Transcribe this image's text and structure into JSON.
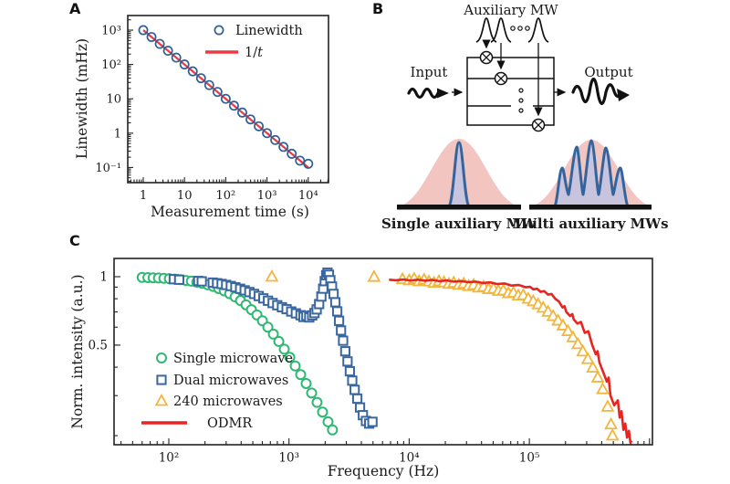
{
  "panels": {
    "a": "A",
    "b": "B",
    "c": "C"
  },
  "diagram": {
    "auxiliary_mw": "Auxiliary MW",
    "input": "Input",
    "output": "Output",
    "single_caption": "Single auxiliary MW",
    "multi_caption": "Multi auxiliary MWs",
    "colors": {
      "envelope": "#f3c5c1",
      "comb_line": "#33659c",
      "comb_fill": "#c9c4de",
      "ink": "#111111"
    }
  },
  "chart_data": [
    {
      "id": "panel_a",
      "type": "scatter",
      "title": "",
      "xlabel": "Measurement time (s)",
      "ylabel": "Linewidth (mHz)",
      "xscale": "log",
      "yscale": "log",
      "xlim": [
        0.42,
        31000
      ],
      "ylim": [
        0.035,
        2600
      ],
      "xticks": [
        {
          "v": 1,
          "label": "1"
        },
        {
          "v": 10,
          "label": "10"
        },
        {
          "v": 100,
          "label": "10²"
        },
        {
          "v": 1000,
          "label": "10³"
        },
        {
          "v": 10000,
          "label": "10⁴"
        }
      ],
      "yticks": [
        {
          "v": 1000,
          "label": "10³"
        },
        {
          "v": 100,
          "label": "10²"
        },
        {
          "v": 10,
          "label": "10"
        },
        {
          "v": 1,
          "label": "1"
        },
        {
          "v": 0.1,
          "label": "10⁻¹"
        }
      ],
      "legend": [
        {
          "marker": "circle",
          "color": "#2d5f96",
          "parts": [
            {
              "text": "Linewidth"
            }
          ]
        },
        {
          "marker": "line",
          "color": "#ed3b43",
          "parts": [
            {
              "text": "1/"
            },
            {
              "text": "t",
              "italic": true
            }
          ]
        }
      ],
      "series": [
        {
          "name": "1/t",
          "type": "line",
          "color": "#ed3b43",
          "points": [
            [
              1,
              1000
            ],
            [
              10000,
              0.1
            ]
          ]
        },
        {
          "name": "Linewidth",
          "type": "scatter",
          "marker": "circle",
          "color": "#2d5f96",
          "points": [
            [
              1,
              1000
            ],
            [
              1.585,
              631
            ],
            [
              2.512,
              398
            ],
            [
              3.981,
              251
            ],
            [
              6.31,
              158.5
            ],
            [
              10,
              100
            ],
            [
              15.85,
              63.1
            ],
            [
              25.12,
              39.8
            ],
            [
              39.81,
              25.1
            ],
            [
              63.1,
              15.85
            ],
            [
              100,
              10
            ],
            [
              158.5,
              6.31
            ],
            [
              251.2,
              3.98
            ],
            [
              398.1,
              2.51
            ],
            [
              631,
              1.585
            ],
            [
              1000,
              1
            ],
            [
              1585,
              0.631
            ],
            [
              2512,
              0.398
            ],
            [
              3981,
              0.251
            ],
            [
              6310,
              0.158
            ],
            [
              10000,
              0.128
            ]
          ]
        }
      ]
    },
    {
      "id": "panel_c",
      "type": "scatter",
      "title": "",
      "xlabel": "Frequency (Hz)",
      "ylabel": "Norm. intensity (a.u.)",
      "xscale": "log",
      "yscale": "log",
      "xlim": [
        35,
        1050000
      ],
      "ylim": [
        0.183,
        1.2
      ],
      "xticks": [
        {
          "v": 100,
          "label": "10²"
        },
        {
          "v": 1000,
          "label": "10³"
        },
        {
          "v": 10000,
          "label": "10⁴"
        },
        {
          "v": 100000,
          "label": "10⁵"
        },
        {
          "v": 1000000,
          "label": ""
        }
      ],
      "yticks": [
        {
          "v": 1,
          "label": "1"
        },
        {
          "v": 0.5,
          "label": "0.5"
        }
      ],
      "legend": [
        {
          "marker": "circle",
          "color": "#2eb873",
          "parts": [
            {
              "text": "Single microwave"
            }
          ]
        },
        {
          "marker": "square",
          "color": "#3a679f",
          "parts": [
            {
              "text": "Dual microwaves"
            }
          ]
        },
        {
          "marker": "triangle",
          "color": "#f2b63c",
          "parts": [
            {
              "text": "240 microwaves"
            }
          ]
        },
        {
          "marker": "line",
          "color": "#e62420",
          "parts": [
            {
              "text": "ODMR"
            }
          ]
        }
      ],
      "series": [
        {
          "name": "Single microwave",
          "type": "scatter",
          "marker": "circle",
          "color": "#2eb873",
          "points": [
            [
              60,
              0.993
            ],
            [
              67,
              0.991
            ],
            [
              74,
              0.989
            ],
            [
              82,
              0.987
            ],
            [
              91,
              0.984
            ],
            [
              101,
              0.98
            ],
            [
              112,
              0.976
            ],
            [
              125,
              0.97
            ],
            [
              139,
              0.963
            ],
            [
              154,
              0.956
            ],
            [
              171,
              0.946
            ],
            [
              190,
              0.935
            ],
            [
              211,
              0.921
            ],
            [
              234,
              0.906
            ],
            [
              260,
              0.887
            ],
            [
              289,
              0.866
            ],
            [
              321,
              0.842
            ],
            [
              356,
              0.815
            ],
            [
              395,
              0.785
            ],
            [
              439,
              0.752
            ],
            [
              487,
              0.716
            ],
            [
              541,
              0.679
            ],
            [
              601,
              0.64
            ],
            [
              667,
              0.6
            ],
            [
              741,
              0.559
            ],
            [
              823,
              0.519
            ],
            [
              914,
              0.48
            ],
            [
              1015,
              0.442
            ],
            [
              1127,
              0.405
            ],
            [
              1251,
              0.371
            ],
            [
              1389,
              0.339
            ],
            [
              1543,
              0.308
            ],
            [
              1713,
              0.28
            ],
            [
              1902,
              0.254
            ],
            [
              2112,
              0.23
            ],
            [
              2300,
              0.212
            ]
          ]
        },
        {
          "name": "Dual microwaves",
          "type": "scatter",
          "marker": "square",
          "color": "#3a679f",
          "points": [
            [
              110,
              0.975
            ],
            [
              122,
              0.97
            ],
            [
              176,
              0.958
            ],
            [
              188,
              0.954
            ],
            [
              232,
              0.942
            ],
            [
              252,
              0.936
            ],
            [
              275,
              0.929
            ],
            [
              300,
              0.92
            ],
            [
              328,
              0.91
            ],
            [
              358,
              0.898
            ],
            [
              392,
              0.885
            ],
            [
              428,
              0.871
            ],
            [
              468,
              0.856
            ],
            [
              512,
              0.84
            ],
            [
              560,
              0.822
            ],
            [
              612,
              0.803
            ],
            [
              669,
              0.784
            ],
            [
              731,
              0.766
            ],
            [
              799,
              0.749
            ],
            [
              874,
              0.734
            ],
            [
              955,
              0.72
            ],
            [
              1044,
              0.703
            ],
            [
              1141,
              0.69
            ],
            [
              1248,
              0.677
            ],
            [
              1320,
              0.665
            ],
            [
              1395,
              0.673
            ],
            [
              1475,
              0.662
            ],
            [
              1560,
              0.676
            ],
            [
              1630,
              0.692
            ],
            [
              1700,
              0.718
            ],
            [
              1782,
              0.758
            ],
            [
              1860,
              0.818
            ],
            [
              1925,
              0.886
            ],
            [
              1985,
              0.956
            ],
            [
              2040,
              1.015
            ],
            [
              2090,
              1.042
            ],
            [
              2150,
              1.02
            ],
            [
              2210,
              0.965
            ],
            [
              2280,
              0.905
            ],
            [
              2350,
              0.84
            ],
            [
              2430,
              0.772
            ],
            [
              2520,
              0.704
            ],
            [
              2610,
              0.64
            ],
            [
              2710,
              0.58
            ],
            [
              2820,
              0.523
            ],
            [
              2940,
              0.47
            ],
            [
              3070,
              0.424
            ],
            [
              3210,
              0.384
            ],
            [
              3360,
              0.349
            ],
            [
              3520,
              0.318
            ],
            [
              3700,
              0.291
            ],
            [
              3900,
              0.266
            ],
            [
              4120,
              0.246
            ],
            [
              4370,
              0.232
            ],
            [
              4650,
              0.226
            ],
            [
              4950,
              0.23
            ]
          ]
        },
        {
          "name": "240 microwaves",
          "type": "scatter",
          "marker": "triangle",
          "color": "#f2b63c",
          "points": [
            [
              720,
              1.0
            ],
            [
              5100,
              0.998
            ],
            [
              8800,
              0.975
            ],
            [
              10000,
              0.964
            ],
            [
              11000,
              0.98
            ],
            [
              12100,
              0.955
            ],
            [
              13300,
              0.97
            ],
            [
              14600,
              0.953
            ],
            [
              16100,
              0.94
            ],
            [
              17700,
              0.955
            ],
            [
              19500,
              0.944
            ],
            [
              21400,
              0.93
            ],
            [
              23500,
              0.941
            ],
            [
              25900,
              0.921
            ],
            [
              28500,
              0.931
            ],
            [
              31300,
              0.91
            ],
            [
              34400,
              0.92
            ],
            [
              37800,
              0.896
            ],
            [
              41600,
              0.903
            ],
            [
              45800,
              0.882
            ],
            [
              50300,
              0.886
            ],
            [
              55300,
              0.866
            ],
            [
              60800,
              0.87
            ],
            [
              66900,
              0.846
            ],
            [
              73600,
              0.85
            ],
            [
              80900,
              0.826
            ],
            [
              89000,
              0.83
            ],
            [
              97900,
              0.8
            ],
            [
              107700,
              0.78
            ],
            [
              118400,
              0.756
            ],
            [
              130200,
              0.73
            ],
            [
              143200,
              0.701
            ],
            [
              157500,
              0.671
            ],
            [
              173200,
              0.641
            ],
            [
              190500,
              0.61
            ],
            [
              209500,
              0.576
            ],
            [
              230400,
              0.541
            ],
            [
              253400,
              0.505
            ],
            [
              278700,
              0.469
            ],
            [
              306500,
              0.434
            ],
            [
              337100,
              0.398
            ],
            [
              370700,
              0.36
            ],
            [
              407700,
              0.32
            ],
            [
              448400,
              0.268
            ],
            [
              478000,
              0.224
            ],
            [
              492000,
              0.2
            ]
          ]
        },
        {
          "name": "ODMR",
          "type": "line",
          "color": "#e62420",
          "points": [
            [
              6800,
              0.97
            ],
            [
              7800,
              0.965
            ],
            [
              9000,
              0.972
            ],
            [
              10300,
              0.962
            ],
            [
              11800,
              0.97
            ],
            [
              13600,
              0.96
            ],
            [
              15600,
              0.967
            ],
            [
              17900,
              0.956
            ],
            [
              20500,
              0.963
            ],
            [
              23600,
              0.951
            ],
            [
              27100,
              0.957
            ],
            [
              31100,
              0.946
            ],
            [
              35700,
              0.951
            ],
            [
              41000,
              0.938
            ],
            [
              47000,
              0.944
            ],
            [
              54000,
              0.929
            ],
            [
              62000,
              0.934
            ],
            [
              71200,
              0.914
            ],
            [
              81700,
              0.919
            ],
            [
              93800,
              0.898
            ],
            [
              101000,
              0.903
            ],
            [
              108000,
              0.88
            ],
            [
              116000,
              0.885
            ],
            [
              124000,
              0.858
            ],
            [
              133000,
              0.864
            ],
            [
              143000,
              0.834
            ],
            [
              153000,
              0.84
            ],
            [
              164000,
              0.8
            ],
            [
              176000,
              0.778
            ],
            [
              189000,
              0.732
            ],
            [
              196000,
              0.742
            ],
            [
              203000,
              0.7
            ],
            [
              218000,
              0.672
            ],
            [
              228000,
              0.685
            ],
            [
              234000,
              0.65
            ],
            [
              251000,
              0.622
            ],
            [
              269000,
              0.632
            ],
            [
              289000,
              0.566
            ],
            [
              310000,
              0.576
            ],
            [
              333000,
              0.502
            ],
            [
              357000,
              0.456
            ],
            [
              370000,
              0.47
            ],
            [
              383000,
              0.42
            ],
            [
              411000,
              0.382
            ],
            [
              441000,
              0.346
            ],
            [
              457000,
              0.36
            ],
            [
              473000,
              0.3
            ],
            [
              508000,
              0.272
            ],
            [
              545000,
              0.286
            ],
            [
              565000,
              0.24
            ],
            [
              585000,
              0.256
            ],
            [
              606000,
              0.212
            ],
            [
              628000,
              0.226
            ],
            [
              650000,
              0.196
            ],
            [
              674000,
              0.21
            ],
            [
              694000,
              0.186
            ],
            [
              710000,
              0.19
            ]
          ]
        }
      ]
    }
  ]
}
